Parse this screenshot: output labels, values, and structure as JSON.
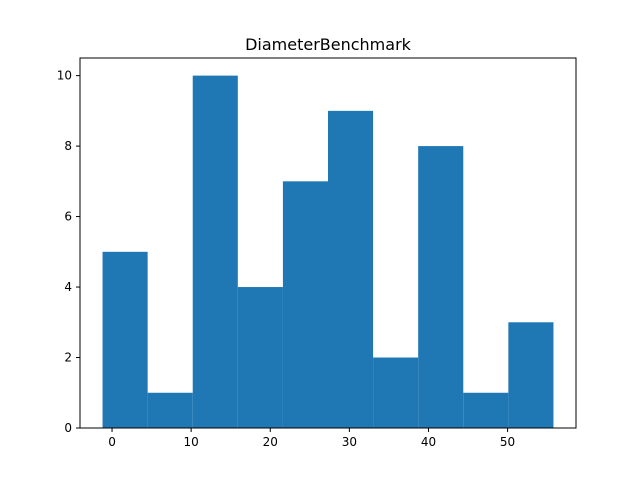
{
  "chart_data": {
    "type": "bar",
    "title": "DiameterBenchmark",
    "xlabel": "",
    "ylabel": "",
    "bin_edges": [
      -1.2,
      4.5,
      10.2,
      15.9,
      21.6,
      27.3,
      33.0,
      38.7,
      44.4,
      50.1,
      55.8
    ],
    "values": [
      5,
      1,
      10,
      4,
      7,
      9,
      2,
      8,
      1,
      3
    ],
    "xlim": [
      -4.05,
      58.65
    ],
    "ylim": [
      0,
      10.5
    ],
    "xticks": [
      0,
      10,
      20,
      30,
      40,
      50
    ],
    "yticks": [
      0,
      2,
      4,
      6,
      8,
      10
    ],
    "bar_color": "#1f77b4",
    "grid": false,
    "legend": "none"
  }
}
